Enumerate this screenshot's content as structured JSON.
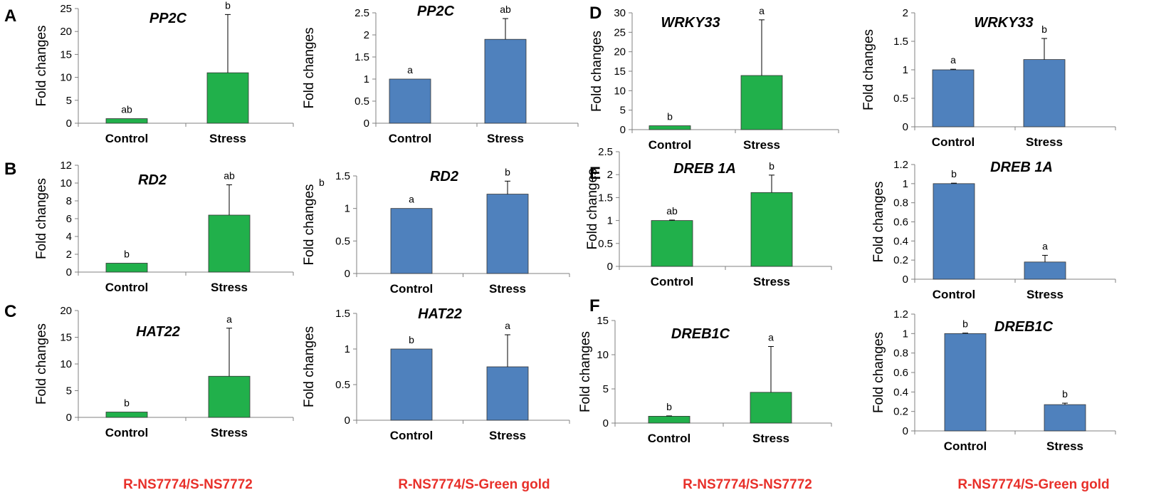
{
  "colors": {
    "green": "#21b04b",
    "blue": "#4f81bd",
    "footer_red": "#e8302a",
    "axis": "#808080",
    "bar_edge": "#333333"
  },
  "labels": {
    "ylabel": "Fold changes"
  },
  "footers": [
    "R-NS7774/S-NS7772",
    "R-NS7774/S-Green gold",
    "R-NS7774/S-NS7772",
    "R-NS7774/S-Green gold"
  ],
  "chart_data": [
    {
      "panel": "A",
      "title": "PP2C",
      "type": "bar",
      "color": "green",
      "ylabel": "Fold changes",
      "categories": [
        "Control",
        "Stress"
      ],
      "values": [
        1,
        11
      ],
      "errors": [
        0,
        12.7
      ],
      "significance": [
        "ab",
        "b"
      ],
      "ylim": [
        0,
        25
      ],
      "yticks": [
        "0",
        "5",
        "10",
        "15",
        "20",
        "25"
      ]
    },
    {
      "panel": "",
      "title": "PP2C",
      "type": "bar",
      "color": "blue",
      "ylabel": "Fold changes",
      "categories": [
        "Control",
        "Stress"
      ],
      "values": [
        1,
        1.9
      ],
      "errors": [
        0,
        0.47
      ],
      "significance": [
        "a",
        "ab"
      ],
      "ylim": [
        0,
        2.5
      ],
      "yticks": [
        "0",
        "0.5",
        "1",
        "1.5",
        "2",
        "2.5"
      ]
    },
    {
      "panel": "D",
      "title": "WRKY33",
      "type": "bar",
      "color": "green",
      "ylabel": "Fold changes",
      "categories": [
        "Control",
        "Stress"
      ],
      "values": [
        1,
        13.9
      ],
      "errors": [
        0,
        14.3
      ],
      "significance": [
        "b",
        "a"
      ],
      "ylim": [
        0,
        30
      ],
      "yticks": [
        "0",
        "5",
        "10",
        "15",
        "20",
        "25",
        "30"
      ]
    },
    {
      "panel": "",
      "title": "WRKY33",
      "type": "bar",
      "color": "blue",
      "ylabel": "Fold changes",
      "categories": [
        "Control",
        "Stress"
      ],
      "values": [
        1,
        1.18
      ],
      "errors": [
        0.01,
        0.37
      ],
      "significance": [
        "a",
        "b"
      ],
      "ylim": [
        0,
        2
      ],
      "yticks": [
        "0",
        "0.5",
        "1",
        "1.5",
        "2"
      ]
    },
    {
      "panel": "B",
      "title": "RD2",
      "type": "bar",
      "color": "green",
      "ylabel": "Fold changes",
      "categories": [
        "Control",
        "Stress"
      ],
      "values": [
        1,
        6.4
      ],
      "errors": [
        0,
        3.4
      ],
      "significance": [
        "b",
        "ab"
      ],
      "ylim": [
        0,
        12
      ],
      "yticks": [
        "0",
        "2",
        "4",
        "6",
        "8",
        "10",
        "12"
      ]
    },
    {
      "panel": "",
      "title": "RD2",
      "type": "bar",
      "color": "blue",
      "ylabel": "Fold changes",
      "categories": [
        "Control",
        "Stress"
      ],
      "values": [
        1,
        1.22
      ],
      "errors": [
        0,
        0.2
      ],
      "significance": [
        "a",
        "b"
      ],
      "ylim": [
        0,
        1.5
      ],
      "yticks": [
        "0",
        "0.5",
        "1",
        "1.5"
      ],
      "corner_letter": "b"
    },
    {
      "panel": "E",
      "title": "DREB 1A",
      "type": "bar",
      "color": "green",
      "ylabel": "Fold changes",
      "categories": [
        "Control",
        "Stress"
      ],
      "values": [
        1,
        1.61
      ],
      "errors": [
        0.01,
        0.38
      ],
      "significance": [
        "ab",
        "b"
      ],
      "ylim": [
        0,
        2.5
      ],
      "yticks": [
        "0",
        "0.5",
        "1",
        "1.5",
        "2",
        "2.5"
      ]
    },
    {
      "panel": "",
      "title": "DREB 1A",
      "type": "bar",
      "color": "blue",
      "ylabel": "Fold changes",
      "categories": [
        "Control",
        "Stress"
      ],
      "values": [
        1,
        0.18
      ],
      "errors": [
        0.005,
        0.07
      ],
      "significance": [
        "b",
        "a"
      ],
      "ylim": [
        0,
        1.2
      ],
      "yticks": [
        "0",
        "0.2",
        "0.4",
        "0.6",
        "0.8",
        "1",
        "1.2"
      ]
    },
    {
      "panel": "C",
      "title": "HAT22",
      "type": "bar",
      "color": "green",
      "ylabel": "Fold changes",
      "categories": [
        "Control",
        "Stress"
      ],
      "values": [
        1,
        7.7
      ],
      "errors": [
        0,
        9
      ],
      "significance": [
        "b",
        "a"
      ],
      "ylim": [
        0,
        20
      ],
      "yticks": [
        "0",
        "5",
        "10",
        "15",
        "20"
      ]
    },
    {
      "panel": "",
      "title": "HAT22",
      "type": "bar",
      "color": "blue",
      "ylabel": "Fold changes",
      "categories": [
        "Control",
        "Stress"
      ],
      "values": [
        1,
        0.75
      ],
      "errors": [
        0,
        0.45
      ],
      "significance": [
        "b",
        "a"
      ],
      "ylim": [
        0,
        1.5
      ],
      "yticks": [
        "0",
        "0.5",
        "1",
        "1.5"
      ]
    },
    {
      "panel": "F",
      "title": "DREB1C",
      "type": "bar",
      "color": "green",
      "ylabel": "Fold changes",
      "categories": [
        "Control",
        "Stress"
      ],
      "values": [
        1,
        4.5
      ],
      "errors": [
        0.05,
        6.7
      ],
      "significance": [
        "b",
        "a"
      ],
      "ylim": [
        0,
        15
      ],
      "yticks": [
        "0",
        "5",
        "10",
        "15"
      ]
    },
    {
      "panel": "",
      "title": "DREB1C",
      "type": "bar",
      "color": "blue",
      "ylabel": "Fold changes",
      "categories": [
        "Control",
        "Stress"
      ],
      "values": [
        1,
        0.27
      ],
      "errors": [
        0.005,
        0.015
      ],
      "significance": [
        "b",
        "b"
      ],
      "ylim": [
        0,
        1.2
      ],
      "yticks": [
        "0",
        "0.2",
        "0.4",
        "0.6",
        "0.8",
        "1",
        "1.2"
      ]
    }
  ]
}
